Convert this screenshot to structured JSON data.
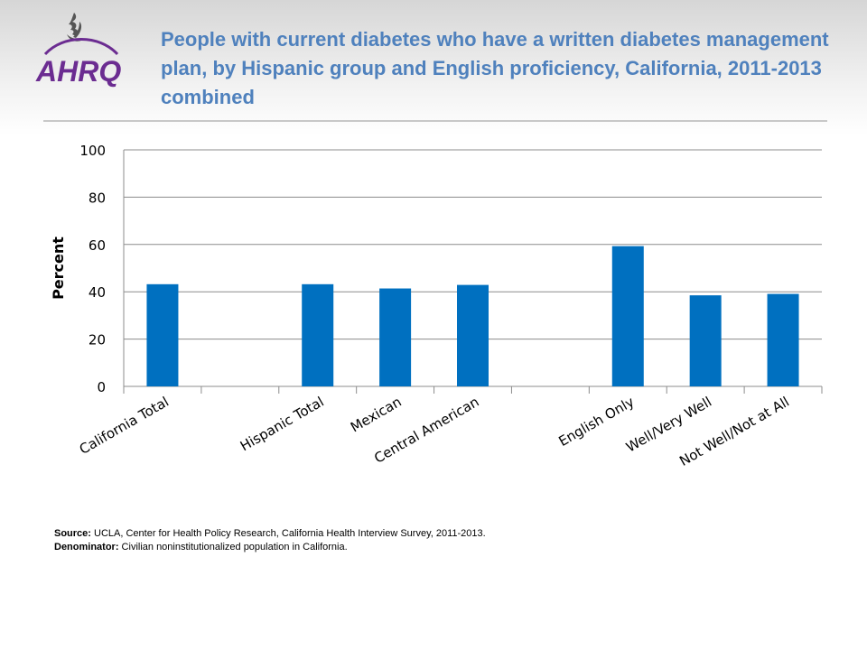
{
  "header": {
    "title": "People with current diabetes who have a written diabetes management plan, by Hispanic group and English proficiency, California, 2011-2013 combined",
    "logo_text": "AHRQ",
    "logo_icon": "hhs-eagle-icon"
  },
  "colors": {
    "bar": "#0070c0",
    "title": "#4f81bd",
    "grid": "#8c8c8c",
    "logo": "#6b2c91"
  },
  "chart_data": {
    "type": "bar",
    "categories": [
      "California Total",
      "",
      "Hispanic Total",
      "Mexican",
      "Central American",
      "",
      "English Only",
      "Well/Very Well",
      "Not Well/Not at All"
    ],
    "values": [
      43.2,
      null,
      43.2,
      41.4,
      42.9,
      null,
      59.3,
      38.5,
      39.1
    ],
    "title": "People with current diabetes who have a written diabetes management plan, by Hispanic group and English proficiency, California, 2011-2013 combined",
    "xlabel": "",
    "ylabel": "Percent",
    "ylim": [
      0,
      100
    ],
    "yticks": [
      0,
      20,
      40,
      60,
      80,
      100
    ],
    "grid": true,
    "legend": "none"
  },
  "footnotes": {
    "source_label": "Source:",
    "source_text": " UCLA, Center for Health Policy Research, California Health Interview Survey, 2011-2013.",
    "denominator_label": "Denominator:",
    "denominator_text": " Civilian noninstitutionalized population in California."
  }
}
